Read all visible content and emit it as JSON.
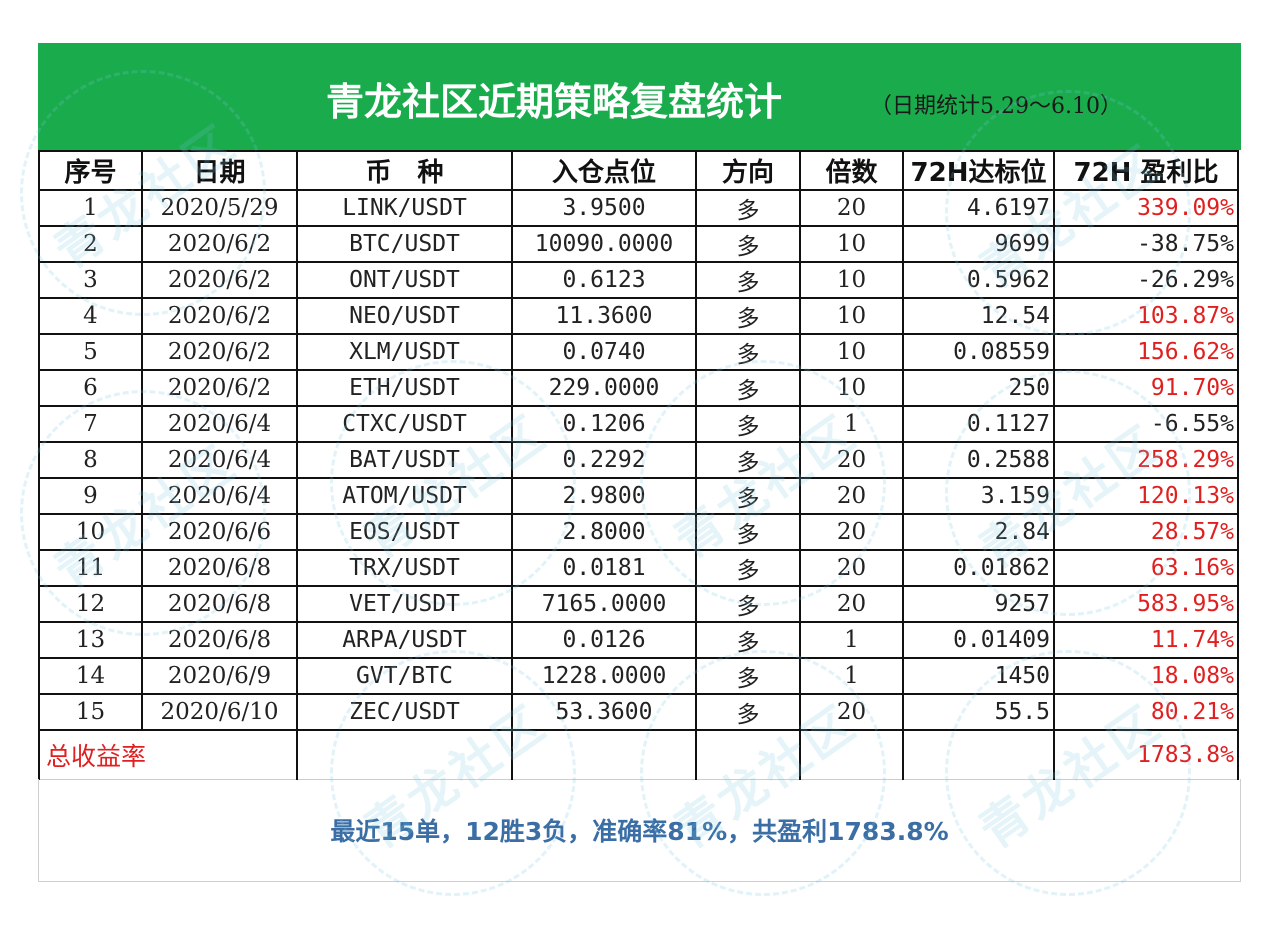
{
  "header": {
    "title": "青龙社区近期策略复盘统计",
    "subtitle": "（日期统计5.29～6.10）",
    "background_color": "#1aab4c"
  },
  "table": {
    "columns": [
      "序号",
      "日期",
      "币　种",
      "入仓点位",
      "方向",
      "倍数",
      "72H达标位",
      "72H 盈利比"
    ],
    "rows": [
      {
        "no": "1",
        "date": "2020/5/29",
        "pair": "LINK/USDT",
        "entry": "3.9500",
        "direction": "多",
        "leverage": "20",
        "target": "4.6197",
        "profit": "339.09%",
        "positive": true
      },
      {
        "no": "2",
        "date": "2020/6/2",
        "pair": "BTC/USDT",
        "entry": "10090.0000",
        "direction": "多",
        "leverage": "10",
        "target": "9699",
        "profit": "-38.75%",
        "positive": false
      },
      {
        "no": "3",
        "date": "2020/6/2",
        "pair": "ONT/USDT",
        "entry": "0.6123",
        "direction": "多",
        "leverage": "10",
        "target": "0.5962",
        "profit": "-26.29%",
        "positive": false
      },
      {
        "no": "4",
        "date": "2020/6/2",
        "pair": "NEO/USDT",
        "entry": "11.3600",
        "direction": "多",
        "leverage": "10",
        "target": "12.54",
        "profit": "103.87%",
        "positive": true
      },
      {
        "no": "5",
        "date": "2020/6/2",
        "pair": "XLM/USDT",
        "entry": "0.0740",
        "direction": "多",
        "leverage": "10",
        "target": "0.08559",
        "profit": "156.62%",
        "positive": true
      },
      {
        "no": "6",
        "date": "2020/6/2",
        "pair": "ETH/USDT",
        "entry": "229.0000",
        "direction": "多",
        "leverage": "10",
        "target": "250",
        "profit": "91.70%",
        "positive": true
      },
      {
        "no": "7",
        "date": "2020/6/4",
        "pair": "CTXC/USDT",
        "entry": "0.1206",
        "direction": "多",
        "leverage": "1",
        "target": "0.1127",
        "profit": "-6.55%",
        "positive": false
      },
      {
        "no": "8",
        "date": "2020/6/4",
        "pair": "BAT/USDT",
        "entry": "0.2292",
        "direction": "多",
        "leverage": "20",
        "target": "0.2588",
        "profit": "258.29%",
        "positive": true
      },
      {
        "no": "9",
        "date": "2020/6/4",
        "pair": "ATOM/USDT",
        "entry": "2.9800",
        "direction": "多",
        "leverage": "20",
        "target": "3.159",
        "profit": "120.13%",
        "positive": true
      },
      {
        "no": "10",
        "date": "2020/6/6",
        "pair": "EOS/USDT",
        "entry": "2.8000",
        "direction": "多",
        "leverage": "20",
        "target": "2.84",
        "profit": "28.57%",
        "positive": true
      },
      {
        "no": "11",
        "date": "2020/6/8",
        "pair": "TRX/USDT",
        "entry": "0.0181",
        "direction": "多",
        "leverage": "20",
        "target": "0.01862",
        "profit": "63.16%",
        "positive": true
      },
      {
        "no": "12",
        "date": "2020/6/8",
        "pair": "VET/USDT",
        "entry": "7165.0000",
        "direction": "多",
        "leverage": "20",
        "target": "9257",
        "profit": "583.95%",
        "positive": true
      },
      {
        "no": "13",
        "date": "2020/6/8",
        "pair": "ARPA/USDT",
        "entry": "0.0126",
        "direction": "多",
        "leverage": "1",
        "target": "0.01409",
        "profit": "11.74%",
        "positive": true
      },
      {
        "no": "14",
        "date": "2020/6/9",
        "pair": "GVT/BTC",
        "entry": "1228.0000",
        "direction": "多",
        "leverage": "1",
        "target": "1450",
        "profit": "18.08%",
        "positive": true
      },
      {
        "no": "15",
        "date": "2020/6/10",
        "pair": "ZEC/USDT",
        "entry": "53.3600",
        "direction": "多",
        "leverage": "20",
        "target": "55.5",
        "profit": "80.21%",
        "positive": true
      }
    ],
    "total_label": "总收益率",
    "total_value": "1783.8%"
  },
  "summary": "最近15单，12胜3负，准确率81%，共盈利1783.8%",
  "watermark_text": "青龙社区",
  "colors": {
    "positive": "#e02020",
    "negative": "#222222",
    "summary": "#3a6ea5"
  }
}
